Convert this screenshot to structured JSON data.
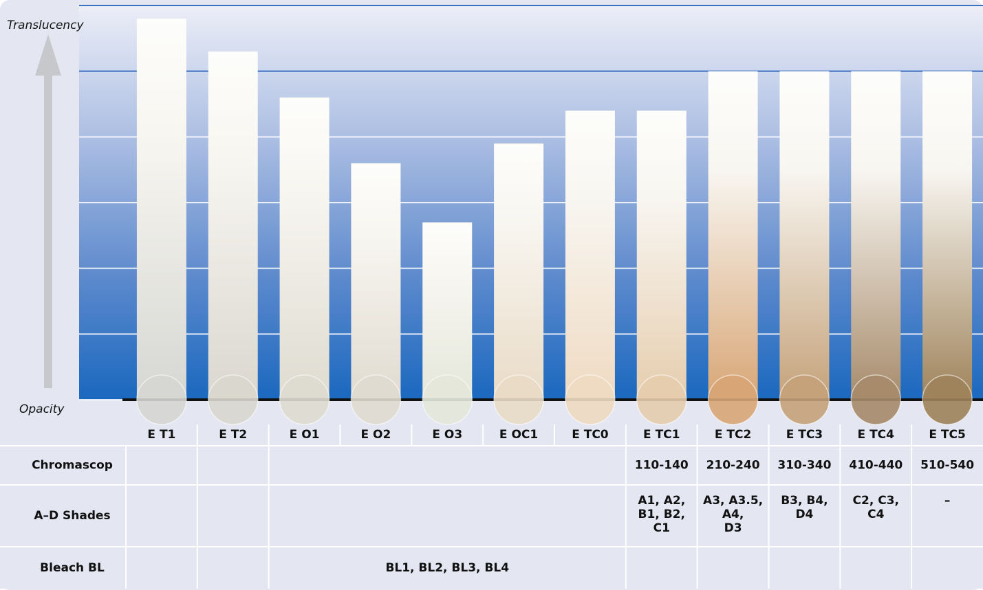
{
  "chart_data": {
    "type": "bar",
    "y_top_label": "Translucency",
    "y_bottom_label": "Opacity",
    "categories": [
      "E T1",
      "E T2",
      "E O1",
      "E O2",
      "E O3",
      "E OC1",
      "E TC0",
      "E TC1",
      "E TC2",
      "E TC3",
      "E TC4",
      "E TC5"
    ],
    "values": [
      5.8,
      5.3,
      4.6,
      3.6,
      2.7,
      3.9,
      4.4,
      4.4,
      5.0,
      5.0,
      5.0,
      5.0
    ],
    "colors": [
      "#d6d7d3",
      "#dad7cf",
      "#dedbd0",
      "#e0dbd0",
      "#e4e7da",
      "#e9dbc6",
      "#efdac2",
      "#e6cdae",
      "#d8a676",
      "#c5a27a",
      "#a78b6b",
      "#9f835b"
    ],
    "ylim": [
      0,
      6
    ],
    "yticks": [
      0,
      1,
      2,
      3,
      4,
      5,
      6
    ],
    "grid": true
  },
  "table": {
    "rows": [
      {
        "label": "Chromascop",
        "cells": [
          null,
          null,
          null,
          null,
          null,
          null,
          null,
          "110-140",
          "210-240",
          "310-340",
          "410-440",
          "510-540"
        ]
      },
      {
        "label": "A–D Shades",
        "cells": [
          null,
          null,
          null,
          null,
          null,
          null,
          null,
          [
            "A1, A2,",
            "B1, B2,",
            "C1"
          ],
          [
            "A3, A3.5,",
            "A4,",
            "D3"
          ],
          [
            "B3, B4,",
            "D4"
          ],
          [
            "C2, C3,",
            "C4"
          ],
          [
            "–"
          ]
        ]
      },
      {
        "label": "Bleach BL",
        "cells": [
          null,
          null,
          "BL1, BL2, BL3, BL4",
          null,
          null,
          null,
          null,
          null,
          null,
          null,
          null,
          null
        ]
      }
    ]
  }
}
